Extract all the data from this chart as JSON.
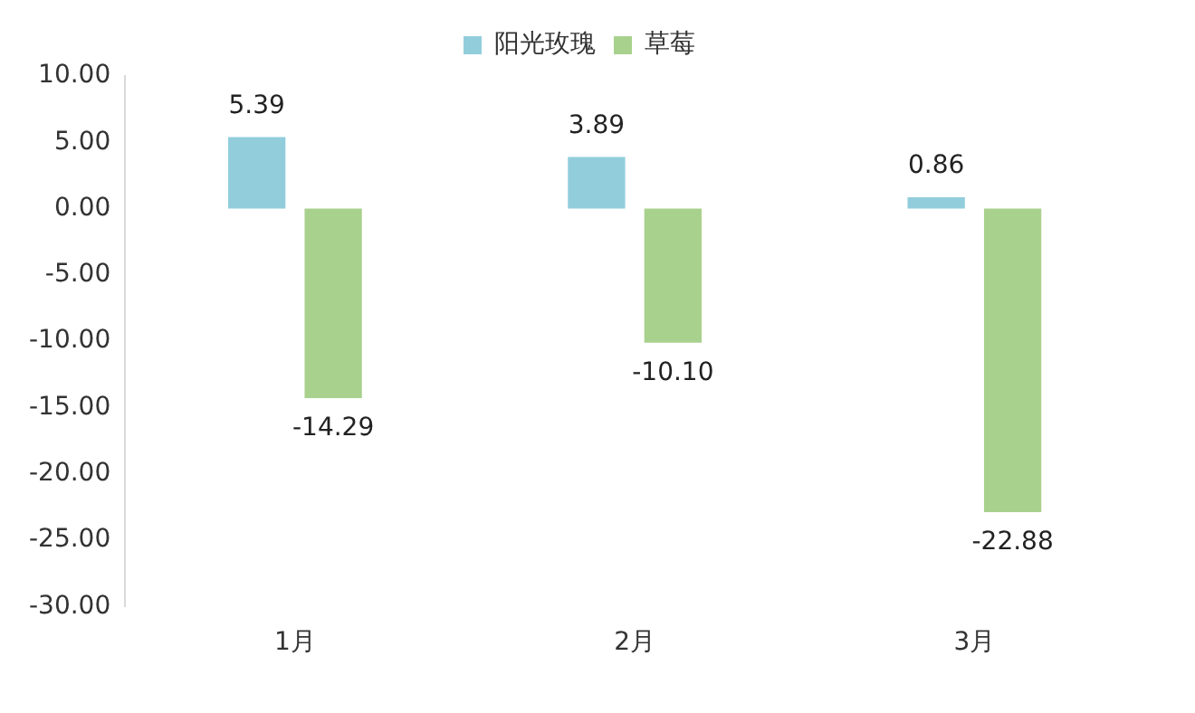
{
  "chart_data": {
    "type": "bar",
    "categories": [
      "1月",
      "2月",
      "3月"
    ],
    "series": [
      {
        "name": "阳光玫瑰",
        "color": "#92cddc",
        "values": [
          5.39,
          3.89,
          0.86
        ],
        "value_labels": [
          "5.39",
          "3.89",
          "0.86"
        ]
      },
      {
        "name": "草莓",
        "color": "#a9d18e",
        "values": [
          -14.29,
          -10.1,
          -22.88
        ],
        "value_labels": [
          "-14.29",
          "-10.10",
          "-22.88"
        ]
      }
    ],
    "ylim": [
      -30,
      10
    ],
    "yticks": [
      {
        "value": -30,
        "label": "-30.00"
      },
      {
        "value": -25,
        "label": "-25.00"
      },
      {
        "value": -20,
        "label": "-20.00"
      },
      {
        "value": -15,
        "label": "-15.00"
      },
      {
        "value": -10,
        "label": "-10.00"
      },
      {
        "value": -5,
        "label": "-5.00"
      },
      {
        "value": 0,
        "label": "0.00"
      },
      {
        "value": 5,
        "label": "5.00"
      },
      {
        "value": 10,
        "label": "10.00"
      }
    ],
    "grid": false,
    "legend": "top"
  }
}
